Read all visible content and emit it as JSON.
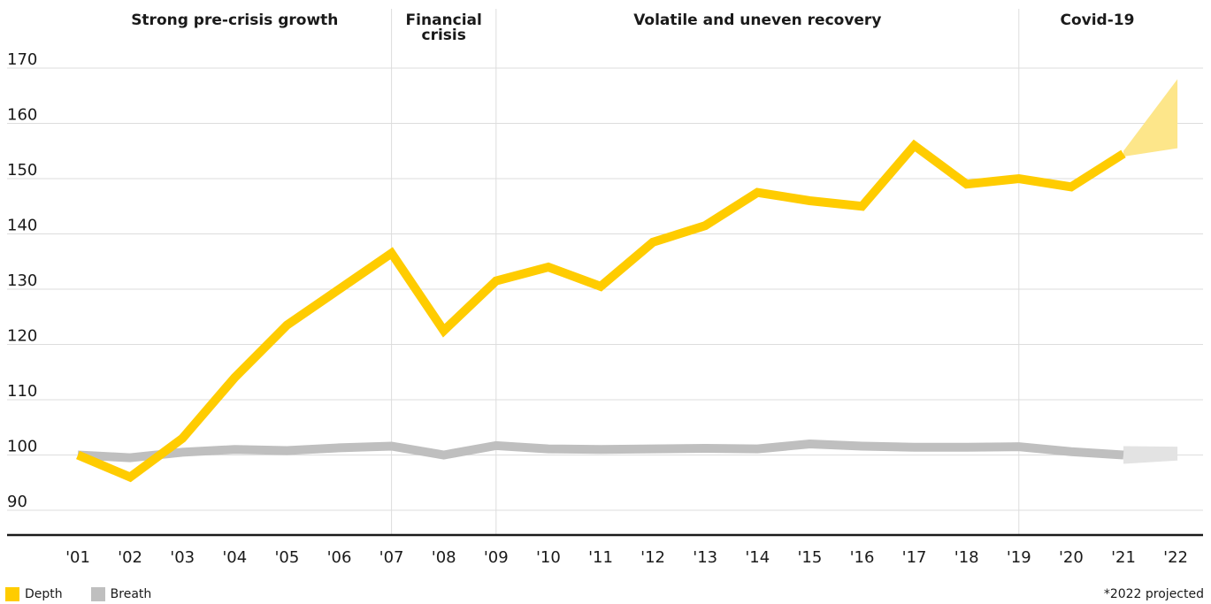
{
  "chart_data": {
    "type": "line",
    "x": [
      "'01",
      "'02",
      "'03",
      "'04",
      "'05",
      "'06",
      "'07",
      "'08",
      "'09",
      "'10",
      "'11",
      "'12",
      "'13",
      "'14",
      "'15",
      "'16",
      "'17",
      "'18",
      "'19",
      "'20",
      "'21",
      "'22"
    ],
    "series": [
      {
        "name": "Depth",
        "color": "#ffcc00",
        "values": [
          100,
          96,
          103,
          114,
          123.5,
          130,
          136.5,
          122.5,
          131.5,
          134,
          130.5,
          138.5,
          141.5,
          147.5,
          146,
          145,
          156,
          149,
          150,
          148.5,
          154.5,
          null
        ],
        "projection": {
          "from": "'21",
          "to": "'22",
          "low": 155.5,
          "high": 168,
          "color": "#fde68a"
        }
      },
      {
        "name": "Breath",
        "color": "#bfbfbf",
        "values": [
          100,
          99.5,
          100.5,
          101,
          100.8,
          101.3,
          101.6,
          100,
          101.7,
          101.1,
          101,
          101.1,
          101.2,
          101.1,
          102,
          101.6,
          101.4,
          101.4,
          101.5,
          100.6,
          100,
          null
        ],
        "projection": {
          "from": "'21",
          "to": "'22",
          "low": 99,
          "high": 101.5,
          "color": "#e3e3e3"
        }
      }
    ],
    "ylim": [
      85,
      172
    ],
    "yticks": [
      90,
      100,
      110,
      120,
      130,
      140,
      150,
      160,
      170
    ],
    "grid": true,
    "periods": [
      {
        "label": [
          "Strong pre-crisis growth"
        ],
        "start": "'01",
        "end": "'07"
      },
      {
        "label": [
          "Financial",
          "crisis"
        ],
        "start": "'07",
        "end": "'09"
      },
      {
        "label": [
          "Volatile and uneven recovery"
        ],
        "start": "'09",
        "end": "'19"
      },
      {
        "label": [
          "Covid-19"
        ],
        "start": "'19",
        "end": "'22"
      }
    ],
    "legend_position": "bottom-left"
  },
  "legend": [
    {
      "label": "Depth",
      "color": "#ffcc00"
    },
    {
      "label": "Breath",
      "color": "#bfbfbf"
    }
  ],
  "footnote": "*2022 projected"
}
